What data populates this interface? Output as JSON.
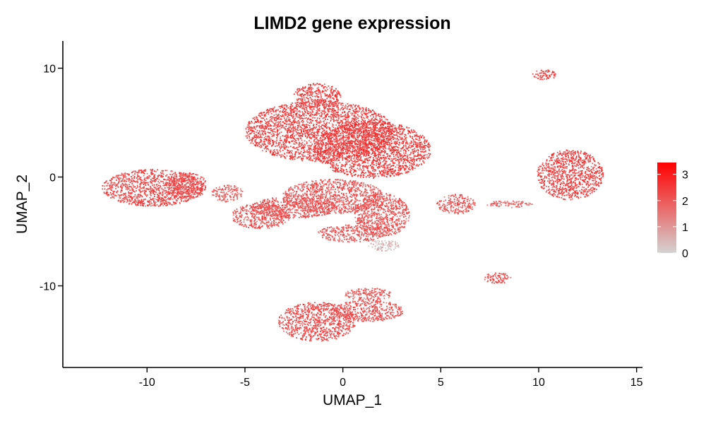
{
  "chart_data": {
    "type": "scatter",
    "title": "LIMD2 gene expression",
    "xlabel": "UMAP_1",
    "ylabel": "UMAP_2",
    "xlim": [
      -14.3,
      15.3
    ],
    "ylim": [
      -17.5,
      12.5
    ],
    "x_ticks": [
      -10,
      -5,
      0,
      5,
      10,
      15
    ],
    "y_ticks": [
      -10,
      0,
      10
    ],
    "x_tick_labels": [
      "-10",
      "-5",
      "0",
      "5",
      "10",
      "15"
    ],
    "y_tick_labels": [
      "-10",
      "0",
      "10"
    ],
    "grid": false,
    "legend": {
      "placement": "right",
      "type": "colorbar",
      "min": 0,
      "max": 3.45,
      "ticks": [
        0,
        1,
        2,
        3
      ],
      "tick_labels": [
        "0",
        "1",
        "2",
        "3"
      ],
      "color_low": "#d3d3d3",
      "color_high": "#ff0000"
    },
    "point_color_typical": "#f36a4c",
    "clusters": [
      {
        "cx": -9.7,
        "cy": -1.0,
        "rx": 2.6,
        "ry": 1.7,
        "level": 2.2
      },
      {
        "cx": -8.0,
        "cy": -0.8,
        "rx": 1.1,
        "ry": 1.2,
        "level": 2.1
      },
      {
        "cx": -4.2,
        "cy": -3.6,
        "rx": 1.5,
        "ry": 1.2,
        "level": 2.0
      },
      {
        "cx": -1.2,
        "cy": 4.2,
        "rx": 3.8,
        "ry": 2.8,
        "level": 2.3
      },
      {
        "cx": 1.5,
        "cy": 2.5,
        "rx": 3.0,
        "ry": 2.6,
        "level": 2.4
      },
      {
        "cx": -1.3,
        "cy": 7.5,
        "rx": 1.2,
        "ry": 1.1,
        "level": 2.3
      },
      {
        "cx": -0.5,
        "cy": -1.8,
        "rx": 2.6,
        "ry": 1.6,
        "level": 2.0
      },
      {
        "cx": -2.5,
        "cy": -2.8,
        "rx": 2.2,
        "ry": 1.0,
        "level": 2.0
      },
      {
        "cx": 2.0,
        "cy": -3.5,
        "rx": 1.4,
        "ry": 2.0,
        "level": 2.0
      },
      {
        "cx": 0.5,
        "cy": -5.2,
        "rx": 1.8,
        "ry": 0.8,
        "level": 1.9
      },
      {
        "cx": 2.1,
        "cy": -6.3,
        "rx": 0.8,
        "ry": 0.5,
        "level": 0.3
      },
      {
        "cx": 11.6,
        "cy": 0.2,
        "rx": 1.7,
        "ry": 2.3,
        "level": 2.3
      },
      {
        "cx": 10.3,
        "cy": 9.4,
        "rx": 0.6,
        "ry": 0.5,
        "level": 2.2
      },
      {
        "cx": 5.8,
        "cy": -2.5,
        "rx": 1.0,
        "ry": 0.9,
        "level": 1.9
      },
      {
        "cx": 7.9,
        "cy": -9.3,
        "rx": 0.7,
        "ry": 0.5,
        "level": 2.0
      },
      {
        "cx": -1.3,
        "cy": -13.3,
        "rx": 2.0,
        "ry": 1.8,
        "level": 2.1
      },
      {
        "cx": 1.3,
        "cy": -12.3,
        "rx": 1.8,
        "ry": 1.0,
        "level": 2.0
      },
      {
        "cx": 1.3,
        "cy": -10.8,
        "rx": 1.2,
        "ry": 0.6,
        "level": 1.8
      },
      {
        "cx": -5.9,
        "cy": -1.5,
        "rx": 0.8,
        "ry": 0.8,
        "level": 1.8
      },
      {
        "cx": 8.5,
        "cy": -2.5,
        "rx": 1.2,
        "ry": 0.3,
        "level": 1.7
      }
    ]
  }
}
